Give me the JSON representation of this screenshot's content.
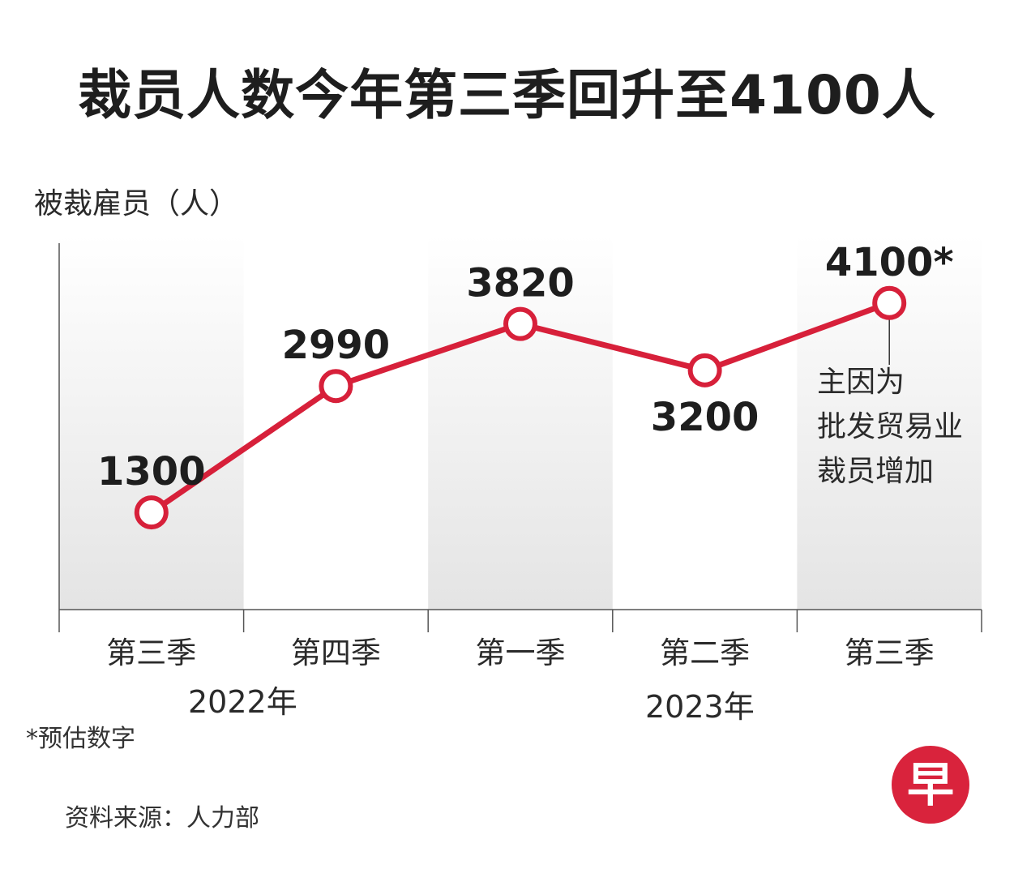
{
  "title": "裁员人数今年第三季回升至4100人",
  "ylabel": "被裁雇员（人）",
  "years": [
    "2022年",
    "2023年"
  ],
  "annotation": [
    "主因为",
    "批发贸易业",
    "裁员增加"
  ],
  "footnote": "*预估数字",
  "source": "资料来源：人力部",
  "logo_char": "早",
  "colors": {
    "line": "#d7203a",
    "band": "#e6e6e6",
    "axis": "#555555",
    "logo": "#d9233c"
  },
  "chart_data": {
    "type": "line",
    "title": "裁员人数今年第三季回升至4100人",
    "ylabel": "被裁雇员（人）",
    "xlabel": "",
    "categories": [
      "第三季",
      "第四季",
      "第一季",
      "第二季",
      "第三季"
    ],
    "groups": [
      {
        "label": "2022年",
        "categories": [
          "第三季",
          "第四季"
        ]
      },
      {
        "label": "2023年",
        "categories": [
          "第一季",
          "第二季",
          "第三季"
        ]
      }
    ],
    "values": [
      1300,
      2990,
      3820,
      3200,
      4100
    ],
    "value_labels": [
      "1300",
      "2990",
      "3820",
      "3200",
      "4100*"
    ],
    "estimated": [
      false,
      false,
      false,
      false,
      true
    ],
    "ylim": [
      0,
      4900
    ],
    "grid": false
  }
}
